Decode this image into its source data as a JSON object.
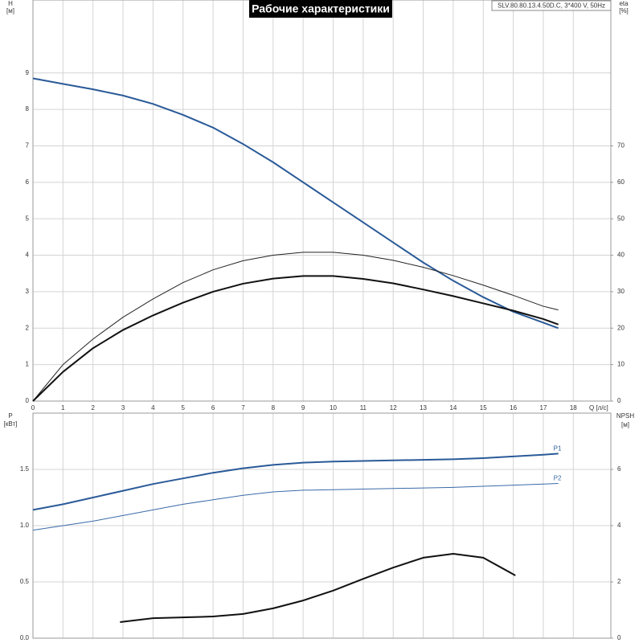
{
  "chart_data": [
    {
      "type": "line",
      "title": "Рабочие характеристики",
      "subtitle": "SLV.80.80.13.4.50D.C, 3*400 V, 50Hz",
      "ylabel": "H",
      "yunit": "[м]",
      "y2label": "eta",
      "y2unit": "[%]",
      "xlabel": "Q [л/с]",
      "x": [
        0,
        1,
        2,
        3,
        4,
        5,
        6,
        7,
        8,
        9,
        10,
        11,
        12,
        13,
        14,
        15,
        16,
        17,
        17.5
      ],
      "xlim": [
        0,
        19.25
      ],
      "xticks": [
        0,
        1,
        2,
        3,
        4,
        5,
        6,
        7,
        8,
        9,
        10,
        11,
        12,
        13,
        14,
        15,
        16,
        17,
        18
      ],
      "ylim": [
        0,
        11
      ],
      "yticks": [
        0,
        1,
        2,
        3,
        4,
        5,
        6,
        7,
        8,
        9
      ],
      "y2lim": [
        0,
        110
      ],
      "y2ticks": [
        0,
        10,
        20,
        30,
        40,
        50,
        60,
        70
      ],
      "grid": true,
      "series": [
        {
          "color": "#2a5a98",
          "line_width": 2,
          "values": [
            8.85,
            8.7,
            8.55,
            8.38,
            8.15,
            7.85,
            7.5,
            7.05,
            6.55,
            6.0,
            5.45,
            4.9,
            4.35,
            3.8,
            3.3,
            2.85,
            2.45,
            2.15,
            2.0
          ]
        },
        {
          "color": "#222222",
          "line_width": 1,
          "axis": "y2",
          "values": [
            0,
            10,
            17,
            23,
            28,
            32.5,
            36,
            38.5,
            40,
            40.8,
            40.8,
            40,
            38.6,
            36.7,
            34.4,
            31.8,
            29,
            26,
            25
          ]
        },
        {
          "color": "#111111",
          "line_width": 2,
          "axis": "y2",
          "values": [
            0,
            8,
            14.5,
            19.5,
            23.5,
            27,
            30,
            32.2,
            33.6,
            34.3,
            34.3,
            33.5,
            32.3,
            30.6,
            28.8,
            26.8,
            24.8,
            22.5,
            21
          ]
        }
      ]
    },
    {
      "type": "line",
      "ylabel": "P",
      "yunit": "[кВт]",
      "y2label": "NPSH",
      "y2unit": "[м]",
      "x": [
        0,
        1,
        2,
        3,
        4,
        5,
        6,
        7,
        8,
        9,
        10,
        11,
        12,
        13,
        14,
        15,
        16,
        17,
        17.5
      ],
      "xlim": [
        0,
        19.25
      ],
      "xticks": [
        0,
        1,
        2,
        3,
        4,
        5,
        6,
        7,
        8,
        9,
        10,
        11,
        12,
        13,
        14,
        15,
        16,
        17,
        18
      ],
      "ylim": [
        0,
        2
      ],
      "yticks": [
        {
          "value": 0,
          "label": "0.0"
        },
        0.5,
        {
          "value": 1,
          "label": "1.0"
        },
        1.5
      ],
      "y2lim": [
        0,
        8
      ],
      "y2ticks": [
        0,
        2,
        4,
        6
      ],
      "grid": true,
      "series": [
        {
          "name": "P1",
          "color": "#2a5a98",
          "line_width": 2,
          "values": [
            1.14,
            1.19,
            1.25,
            1.31,
            1.37,
            1.42,
            1.47,
            1.51,
            1.54,
            1.56,
            1.57,
            1.575,
            1.58,
            1.585,
            1.59,
            1.6,
            1.615,
            1.63,
            1.64
          ]
        },
        {
          "name": "P2",
          "color": "#3a6aa8",
          "line_width": 1,
          "values": [
            0.96,
            1.0,
            1.04,
            1.09,
            1.14,
            1.19,
            1.23,
            1.27,
            1.3,
            1.315,
            1.32,
            1.325,
            1.33,
            1.335,
            1.34,
            1.35,
            1.36,
            1.37,
            1.375
          ]
        },
        {
          "color": "#111111",
          "line_width": 2,
          "axis": "y2",
          "x": [
            2.9,
            4,
            5,
            6,
            7,
            8,
            9,
            10,
            11,
            12,
            13,
            14,
            15,
            16.07
          ],
          "values": [
            0.57,
            0.71,
            0.74,
            0.77,
            0.86,
            1.06,
            1.34,
            1.69,
            2.11,
            2.51,
            2.86,
            3.0,
            2.86,
            2.23
          ]
        }
      ]
    }
  ]
}
